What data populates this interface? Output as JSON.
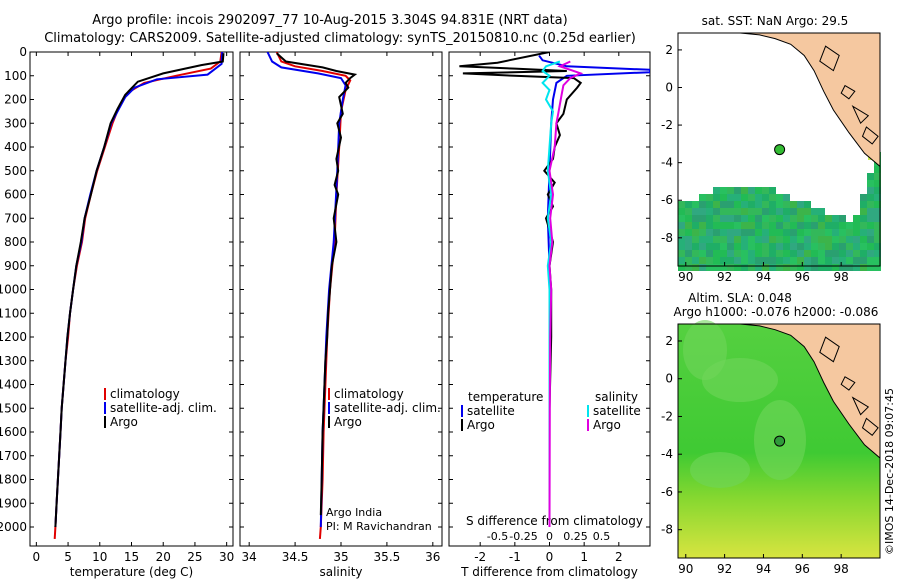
{
  "header": {
    "line1": "Argo profile: incois 2902097_77 10-Aug-2015 3.304S 94.831E (NRT data)",
    "line2": "Climatology: CARS2009. Satellite-adjusted climatology: synTS_20150810.nc (0.25d earlier)"
  },
  "colors": {
    "climatology": "#e00000",
    "satellite": "#0000ee",
    "argo": "#000000",
    "salinity_sat": "#00e5ee",
    "salinity_argo": "#e000e0"
  },
  "chart_data": [
    {
      "type": "line",
      "id": "temperature",
      "xlabel": "temperature (deg C)",
      "xlim": [
        -1,
        31
      ],
      "ylim": [
        2080,
        0
      ],
      "xticks": [
        0,
        5,
        10,
        15,
        20,
        25,
        30
      ],
      "yticks": [
        0,
        100,
        200,
        300,
        400,
        500,
        600,
        700,
        800,
        900,
        1000,
        1100,
        1200,
        1300,
        1400,
        1500,
        1600,
        1700,
        1800,
        1900,
        2000
      ],
      "legend": [
        "climatology",
        "satellite-adj. clim.",
        "Argo"
      ],
      "series": [
        {
          "name": "climatology",
          "color": "#e00000",
          "points": [
            [
              29.2,
              0
            ],
            [
              29.0,
              40
            ],
            [
              27.5,
              70
            ],
            [
              22,
              100
            ],
            [
              17,
              130
            ],
            [
              14.5,
              170
            ],
            [
              13.2,
              220
            ],
            [
              12,
              300
            ],
            [
              10.8,
              400
            ],
            [
              9.6,
              500
            ],
            [
              8.6,
              600
            ],
            [
              7.7,
              700
            ],
            [
              7.2,
              800
            ],
            [
              6.4,
              900
            ],
            [
              5.8,
              1000
            ],
            [
              5.3,
              1100
            ],
            [
              5.0,
              1200
            ],
            [
              4.6,
              1300
            ],
            [
              4.3,
              1400
            ],
            [
              4.0,
              1500
            ],
            [
              3.8,
              1600
            ],
            [
              3.6,
              1700
            ],
            [
              3.4,
              1800
            ],
            [
              3.2,
              1900
            ],
            [
              3.0,
              2000
            ],
            [
              2.9,
              2050
            ]
          ]
        },
        {
          "name": "satellite-adj. clim.",
          "color": "#0000ee",
          "points": [
            [
              29.3,
              0
            ],
            [
              29.2,
              50
            ],
            [
              27,
              95
            ],
            [
              19,
              115
            ],
            [
              15.5,
              150
            ],
            [
              14,
              190
            ],
            [
              13,
              240
            ],
            [
              11.8,
              300
            ],
            [
              10.7,
              400
            ],
            [
              9.5,
              500
            ],
            [
              8.5,
              600
            ],
            [
              7.6,
              700
            ],
            [
              7.1,
              800
            ],
            [
              6.3,
              900
            ],
            [
              5.8,
              1000
            ],
            [
              5.3,
              1100
            ],
            [
              4.9,
              1200
            ],
            [
              4.6,
              1300
            ],
            [
              4.3,
              1400
            ],
            [
              4.0,
              1500
            ],
            [
              3.8,
              1600
            ],
            [
              3.6,
              1700
            ],
            [
              3.4,
              1800
            ],
            [
              3.2,
              1900
            ],
            [
              3.0,
              2000
            ]
          ]
        },
        {
          "name": "Argo",
          "color": "#000000",
          "points": [
            [
              29.5,
              5
            ],
            [
              29.4,
              40
            ],
            [
              26,
              55
            ],
            [
              20,
              90
            ],
            [
              16,
              125
            ],
            [
              14,
              180
            ],
            [
              12.8,
              240
            ],
            [
              11.7,
              300
            ],
            [
              10.7,
              400
            ],
            [
              9.5,
              500
            ],
            [
              8.6,
              600
            ],
            [
              7.6,
              700
            ],
            [
              7.0,
              800
            ],
            [
              6.3,
              900
            ],
            [
              5.8,
              1000
            ],
            [
              5.3,
              1100
            ],
            [
              4.9,
              1200
            ],
            [
              4.6,
              1300
            ],
            [
              4.3,
              1400
            ],
            [
              4.0,
              1500
            ],
            [
              3.8,
              1600
            ],
            [
              3.6,
              1700
            ],
            [
              3.4,
              1800
            ],
            [
              3.2,
              1900
            ],
            [
              3.0,
              2000
            ]
          ]
        }
      ]
    },
    {
      "type": "line",
      "id": "salinity",
      "xlabel": "salinity",
      "xlim": [
        33.9,
        36.1
      ],
      "ylim": [
        2080,
        0
      ],
      "xticks": [
        34,
        34.5,
        35,
        35.5,
        36
      ],
      "legend": [
        "climatology",
        "satellite-adj. clim.",
        "Argo"
      ],
      "annotation": [
        "Argo India",
        "PI: M Ravichandran"
      ],
      "series": [
        {
          "name": "climatology",
          "color": "#e00000",
          "points": [
            [
              34.3,
              0
            ],
            [
              34.35,
              40
            ],
            [
              34.5,
              60
            ],
            [
              34.8,
              80
            ],
            [
              35.05,
              100
            ],
            [
              35.1,
              120
            ],
            [
              35.05,
              160
            ],
            [
              35.0,
              250
            ],
            [
              34.98,
              400
            ],
            [
              34.95,
              600
            ],
            [
              34.93,
              800
            ],
            [
              34.88,
              1000
            ],
            [
              34.85,
              1200
            ],
            [
              34.83,
              1400
            ],
            [
              34.81,
              1600
            ],
            [
              34.8,
              1800
            ],
            [
              34.78,
              2000
            ],
            [
              34.77,
              2050
            ]
          ]
        },
        {
          "name": "satellite-adj. clim.",
          "color": "#0000ee",
          "points": [
            [
              34.2,
              0
            ],
            [
              34.25,
              40
            ],
            [
              34.35,
              65
            ],
            [
              34.75,
              90
            ],
            [
              35.0,
              110
            ],
            [
              35.05,
              140
            ],
            [
              35.02,
              200
            ],
            [
              34.98,
              300
            ],
            [
              34.96,
              500
            ],
            [
              34.92,
              800
            ],
            [
              34.87,
              1000
            ],
            [
              34.84,
              1200
            ],
            [
              34.82,
              1400
            ],
            [
              34.8,
              1600
            ],
            [
              34.79,
              1800
            ],
            [
              34.78,
              2000
            ]
          ]
        },
        {
          "name": "Argo",
          "color": "#000000",
          "points": [
            [
              34.3,
              5
            ],
            [
              34.4,
              40
            ],
            [
              34.8,
              65
            ],
            [
              34.95,
              80
            ],
            [
              35.15,
              95
            ],
            [
              35.1,
              110
            ],
            [
              35.05,
              130
            ],
            [
              35.08,
              150
            ],
            [
              34.98,
              190
            ],
            [
              35.02,
              260
            ],
            [
              34.96,
              300
            ],
            [
              35.0,
              360
            ],
            [
              34.95,
              450
            ],
            [
              34.97,
              500
            ],
            [
              34.93,
              560
            ],
            [
              34.97,
              600
            ],
            [
              34.92,
              700
            ],
            [
              34.95,
              800
            ],
            [
              34.9,
              900
            ],
            [
              34.88,
              1000
            ],
            [
              34.86,
              1100
            ],
            [
              34.85,
              1200
            ],
            [
              34.83,
              1300
            ],
            [
              34.82,
              1400
            ],
            [
              34.81,
              1500
            ],
            [
              34.8,
              1600
            ],
            [
              34.79,
              1800
            ],
            [
              34.78,
              1950
            ]
          ]
        }
      ]
    },
    {
      "type": "line",
      "id": "differences",
      "xlabel": "T difference from climatology",
      "xlabel2": "S difference from climatology",
      "xlim": [
        -2.9,
        2.9
      ],
      "ylim": [
        2080,
        0
      ],
      "xticks": [
        -2,
        -1,
        0,
        1,
        2
      ],
      "xticks2": [
        {
          "value": -1.5,
          "label": "-0.5"
        },
        {
          "value": -0.75,
          "label": "-0.25"
        },
        {
          "value": 0,
          "label": "0"
        },
        {
          "value": 0.75,
          "label": "0.25"
        },
        {
          "value": 1.5,
          "label": "0.5"
        }
      ],
      "legend_left_title": "temperature",
      "legend_right_title": "salinity",
      "legend_left": [
        "satellite",
        "Argo"
      ],
      "legend_right": [
        "satellite",
        "Argo"
      ],
      "series": [
        {
          "name": "T satellite",
          "color": "#0000ee",
          "points": [
            [
              -0.3,
              15
            ],
            [
              -0.2,
              35
            ],
            [
              0.5,
              60
            ],
            [
              2.9,
              75
            ],
            [
              2.9,
              85
            ],
            [
              0.5,
              100
            ],
            [
              0.2,
              130
            ],
            [
              0.1,
              200
            ],
            [
              0.05,
              300
            ],
            [
              0,
              500
            ],
            [
              -0.05,
              700
            ],
            [
              0,
              900
            ],
            [
              0,
              1200
            ],
            [
              0,
              1500
            ],
            [
              0,
              2000
            ]
          ]
        },
        {
          "name": "T Argo",
          "color": "#000000",
          "points": [
            [
              0,
              0
            ],
            [
              -1.5,
              45
            ],
            [
              -2.6,
              60
            ],
            [
              -1,
              70
            ],
            [
              0.5,
              80
            ],
            [
              -2.5,
              90
            ],
            [
              -1,
              100
            ],
            [
              0.7,
              110
            ],
            [
              0.9,
              130
            ],
            [
              0.8,
              150
            ],
            [
              0.5,
              200
            ],
            [
              0.4,
              260
            ],
            [
              0.2,
              300
            ],
            [
              0.3,
              350
            ],
            [
              0.15,
              400
            ],
            [
              0.1,
              450
            ],
            [
              -0.15,
              500
            ],
            [
              0.15,
              550
            ],
            [
              -0.05,
              600
            ],
            [
              0.1,
              650
            ],
            [
              -0.1,
              700
            ],
            [
              0.1,
              800
            ],
            [
              0,
              900
            ],
            [
              0.05,
              1000
            ],
            [
              0.05,
              1200
            ],
            [
              0,
              1500
            ],
            [
              0,
              1800
            ],
            [
              0,
              2000
            ]
          ]
        },
        {
          "name": "S satellite",
          "color": "#00e5ee",
          "points": [
            [
              0.3,
              40
            ],
            [
              -0.1,
              60
            ],
            [
              -0.2,
              80
            ],
            [
              0,
              100
            ],
            [
              -0.2,
              130
            ],
            [
              0,
              160
            ],
            [
              -0.1,
              200
            ],
            [
              0.1,
              250
            ],
            [
              0.05,
              300
            ],
            [
              0,
              400
            ],
            [
              -0.05,
              500
            ],
            [
              0.05,
              600
            ],
            [
              -0.05,
              700
            ],
            [
              0.05,
              800
            ],
            [
              -0.05,
              900
            ],
            [
              0,
              1000
            ],
            [
              0,
              1200
            ],
            [
              0,
              1500
            ],
            [
              0,
              2000
            ]
          ]
        },
        {
          "name": "S Argo",
          "color": "#e000e0",
          "points": [
            [
              0.6,
              40
            ],
            [
              0.3,
              60
            ],
            [
              0.6,
              75
            ],
            [
              0.9,
              90
            ],
            [
              0.6,
              110
            ],
            [
              0.4,
              140
            ],
            [
              0.35,
              180
            ],
            [
              0.3,
              220
            ],
            [
              0.25,
              260
            ],
            [
              0.2,
              300
            ],
            [
              0.15,
              400
            ],
            [
              0,
              500
            ],
            [
              0.1,
              600
            ],
            [
              0.02,
              700
            ],
            [
              0.08,
              800
            ],
            [
              0,
              900
            ],
            [
              0.05,
              1000
            ],
            [
              0.02,
              1200
            ],
            [
              0.01,
              1500
            ],
            [
              0,
              2000
            ]
          ]
        }
      ]
    }
  ],
  "map_top": {
    "title": "sat. SST: NaN Argo: 29.5",
    "xticks": [
      90,
      92,
      94,
      96,
      98
    ],
    "yticks": [
      2,
      0,
      -2,
      -4,
      -6,
      -8
    ],
    "argo_lon": 94.831,
    "argo_lat": -3.304
  },
  "map_bottom": {
    "title1": "Altim. SLA: 0.048",
    "title2": "Argo h1000: -0.076 h2000: -0.086",
    "xticks": [
      90,
      92,
      94,
      96,
      98
    ],
    "yticks": [
      2,
      0,
      -2,
      -4,
      -6,
      -8
    ],
    "argo_lon": 94.831,
    "argo_lat": -3.304
  },
  "credit": "©IMOS 14-Dec-2018 09:07:45"
}
